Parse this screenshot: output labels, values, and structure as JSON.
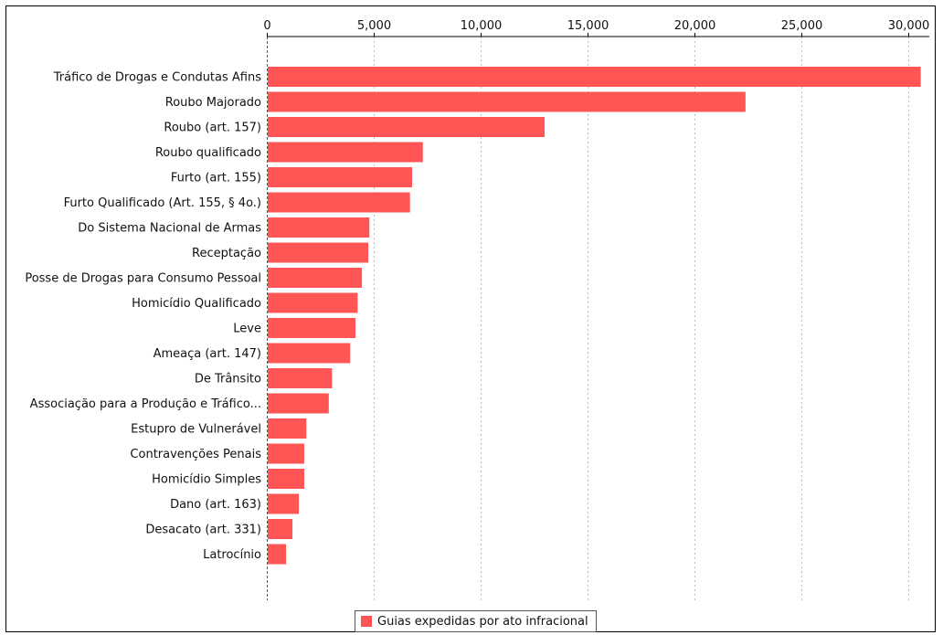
{
  "chart_data": {
    "type": "bar",
    "orientation": "horizontal",
    "categories": [
      "Tráfico de Drogas e Condutas Afins",
      "Roubo Majorado",
      "Roubo (art. 157)",
      "Roubo qualificado",
      "Furto (art. 155)",
      "Furto Qualificado (Art. 155, § 4o.)",
      "Do Sistema Nacional de Armas",
      "Receptação",
      "Posse de Drogas para Consumo Pessoal",
      "Homicídio Qualificado",
      "Leve",
      "Ameaça (art. 147)",
      "De Trânsito",
      "Associação para a Produção e Tráfico...",
      "Estupro de Vulnerável",
      "Contravenções Penais",
      "Homicídio Simples",
      "Dano (art. 163)",
      "Desacato (art. 331)",
      "Latrocínio"
    ],
    "series": [
      {
        "name": "Guias expedidas por ato infracional",
        "color": "#ff5555",
        "values": [
          30600,
          22400,
          13000,
          7300,
          6800,
          6700,
          4800,
          4750,
          4450,
          4250,
          4150,
          3900,
          3050,
          2900,
          1850,
          1750,
          1750,
          1500,
          1200,
          900
        ]
      }
    ],
    "xlim": [
      0,
      31000
    ],
    "xticks": [
      0,
      5000,
      10000,
      15000,
      20000,
      25000,
      30000
    ],
    "xtick_labels": [
      "0",
      "5,000",
      "10,000",
      "15,000",
      "20,000",
      "25,000",
      "30,000"
    ],
    "axis_position": "top",
    "grid": "vertical dotted",
    "legend_position": "bottom-center"
  }
}
